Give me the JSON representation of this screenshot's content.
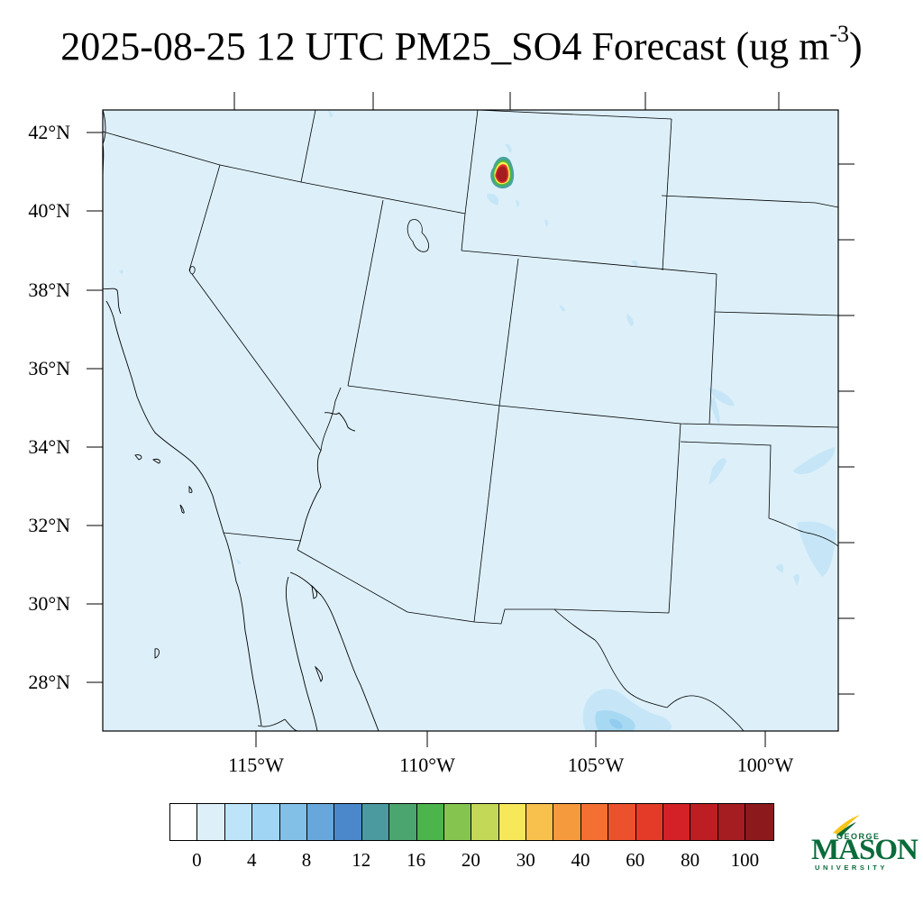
{
  "title": {
    "text": "2025-08-25 12 UTC PM25_SO4 Forecast (ug m",
    "exponent": "-3",
    "close": ")"
  },
  "map": {
    "projection": "lambert-conformal",
    "region": "Southwestern United States and Northern Mexico",
    "background_color": "#ddf0fa",
    "lat_labels": [
      "42°N",
      "40°N",
      "38°N",
      "36°N",
      "34°N",
      "32°N",
      "30°N",
      "28°N"
    ],
    "lon_labels": [
      "115°W",
      "110°W",
      "105°W",
      "100°W"
    ],
    "hotspot": {
      "location": "southwestern Wyoming",
      "colors": [
        "#a51c21",
        "#e33127",
        "#f7f051",
        "#4bb44a",
        "#4aa2a0"
      ]
    }
  },
  "colorbar": {
    "colors": [
      "#ffffff",
      "#ddf0fa",
      "#bde4f8",
      "#a0d6f4",
      "#83c0e8",
      "#67a7dc",
      "#4a88cb",
      "#4a9aa0",
      "#4aa66e",
      "#4bb44a",
      "#85c54f",
      "#c3d856",
      "#f7e85a",
      "#f8c04c",
      "#f69a3e",
      "#f36f32",
      "#ea512c",
      "#e33b28",
      "#d42027",
      "#bd1e24",
      "#a51c21",
      "#8c191c"
    ],
    "labels": [
      "0",
      "4",
      "8",
      "12",
      "16",
      "20",
      "30",
      "40",
      "60",
      "80",
      "100"
    ]
  },
  "logo": {
    "top": "GEORGE",
    "main": "MASON",
    "bottom": "UNIVERSITY",
    "color": "#0b6b3a",
    "accent": "#f5c518"
  }
}
